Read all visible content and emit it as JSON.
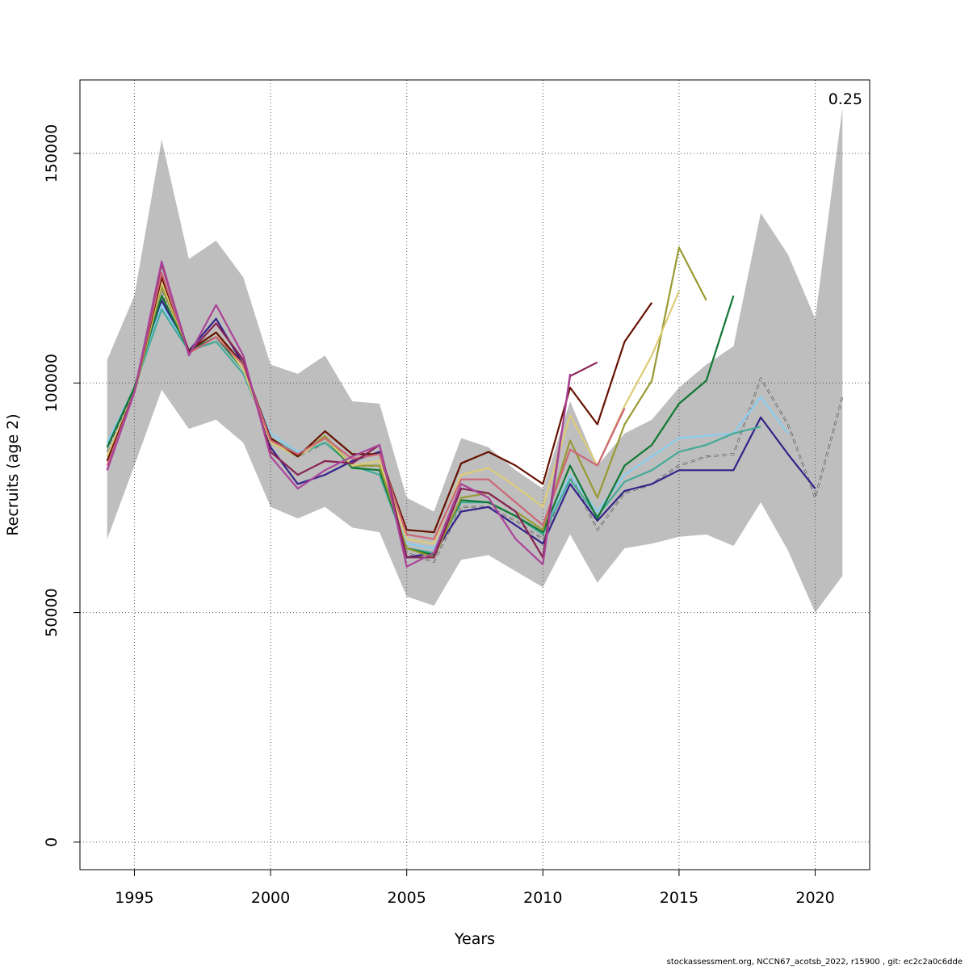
{
  "chart_data": {
    "type": "line",
    "xlabel": "Years",
    "ylabel": "Recruits (age 2)",
    "xlim": [
      1993,
      2022
    ],
    "ylim": [
      -6000,
      166000
    ],
    "x_ticks": [
      1995,
      2000,
      2005,
      2010,
      2015,
      2020
    ],
    "y_ticks": [
      0,
      50000,
      100000,
      150000
    ],
    "grid": true,
    "annotation": "0.25",
    "band": {
      "x": [
        1994,
        1995,
        1996,
        1997,
        1998,
        1999,
        2000,
        2001,
        2002,
        2003,
        2004,
        2005,
        2006,
        2007,
        2008,
        2009,
        2010,
        2011,
        2012,
        2013,
        2014,
        2015,
        2016,
        2017,
        2018,
        2019,
        2020,
        2021
      ],
      "upper": [
        105000,
        119000,
        153000,
        127000,
        131000,
        123000,
        104000,
        102000,
        106000,
        96000,
        95500,
        75000,
        72000,
        88000,
        86000,
        81000,
        77000,
        96000,
        82000,
        89000,
        92000,
        99000,
        104000,
        108000,
        137000,
        128000,
        114000,
        160000
      ],
      "lower": [
        66000,
        82000,
        98500,
        90000,
        92000,
        87000,
        73000,
        70500,
        73000,
        68500,
        67500,
        53500,
        51500,
        61500,
        62500,
        59000,
        55500,
        67000,
        56500,
        64000,
        65000,
        66500,
        67000,
        64500,
        74000,
        63500,
        50000,
        58000
      ]
    },
    "series": [
      {
        "color": "#000000",
        "dashed": true,
        "width": 2.0,
        "start": 1994,
        "values": [
          85000,
          98000,
          120000,
          107000,
          110000,
          103000,
          87000,
          84000,
          87000,
          82000,
          82000,
          63000,
          61000,
          73000,
          73000,
          70000,
          66000,
          80000,
          68000,
          76000,
          78000,
          82000,
          84000,
          84500,
          101000,
          91000,
          75000,
          97000
        ]
      },
      {
        "color": "#d9d9d9",
        "dashed": true,
        "width": 1.2,
        "start": 1994,
        "values": [
          85000,
          98000,
          120000,
          107000,
          110000,
          103000,
          87000,
          84000,
          87000,
          82000,
          82000,
          63000,
          61000,
          73000,
          73000,
          70000,
          66000,
          80000,
          68000,
          76000,
          78000,
          82000,
          84000,
          84500,
          101000,
          91000,
          75000,
          97000
        ]
      },
      {
        "color": "#332288",
        "start": 1994,
        "values": [
          86000,
          99000,
          118000,
          107000,
          114000,
          104000,
          86000,
          78000,
          80000,
          83000,
          85000,
          62000,
          63000,
          72000,
          73000,
          69000,
          65000,
          78000,
          70000,
          76500,
          78000,
          81000,
          81000,
          81000,
          92500,
          84500,
          77000
        ]
      },
      {
        "color": "#88ccee",
        "start": 1994,
        "values": [
          87000,
          99000,
          117000,
          107000,
          110000,
          103000,
          89000,
          85000,
          87000,
          82000,
          80000,
          65000,
          64000,
          74000,
          74000,
          71000,
          67000,
          80000,
          72000,
          80000,
          84000,
          88000,
          88500,
          89000,
          97000,
          89000
        ]
      },
      {
        "color": "#44aa99",
        "start": 1994,
        "values": [
          86000,
          99000,
          116000,
          107000,
          109000,
          102000,
          88000,
          84500,
          87000,
          82000,
          80000,
          64000,
          63000,
          74000,
          74000,
          71000,
          67000,
          79000,
          71000,
          78500,
          81000,
          85000,
          86500,
          89000,
          90500
        ]
      },
      {
        "color": "#117733",
        "start": 1994,
        "values": [
          86000,
          99000,
          119000,
          107000,
          110000,
          103000,
          88000,
          84000,
          88000,
          81500,
          81000,
          64000,
          62500,
          74500,
          74000,
          71000,
          67500,
          82000,
          70500,
          82000,
          86500,
          95500,
          100500,
          119000
        ]
      },
      {
        "color": "#999933",
        "start": 1994,
        "values": [
          84000,
          98000,
          121000,
          107000,
          111000,
          104000,
          87000,
          84000,
          88500,
          82000,
          82000,
          64000,
          62000,
          75000,
          76000,
          72000,
          68000,
          87500,
          75000,
          91000,
          100500,
          129500,
          118000
        ]
      },
      {
        "color": "#ddcc77",
        "start": 1994,
        "values": [
          84000,
          98000,
          122000,
          107000,
          111000,
          103000,
          87000,
          84000,
          88000,
          82000,
          83000,
          66000,
          65000,
          80000,
          81500,
          77500,
          73000,
          93000,
          82000,
          95000,
          106000,
          120000
        ]
      },
      {
        "color": "#661100",
        "start": 1994,
        "values": [
          83000,
          98000,
          123000,
          107000,
          111000,
          104000,
          88000,
          84000,
          89500,
          84500,
          84500,
          68000,
          67500,
          82500,
          85000,
          82000,
          78000,
          99000,
          91000,
          109000,
          117500
        ]
      },
      {
        "color": "#cc6677",
        "start": 1994,
        "values": [
          82000,
          98000,
          124000,
          106500,
          110000,
          104000,
          87500,
          84500,
          88000,
          83500,
          84500,
          67000,
          66000,
          79000,
          79000,
          74000,
          69000,
          85500,
          82000,
          94500
        ]
      },
      {
        "color": "#882255",
        "start": 1994,
        "values": [
          81000,
          98000,
          126000,
          106500,
          113000,
          105000,
          85000,
          80000,
          83000,
          82500,
          86500,
          62000,
          62000,
          77000,
          76000,
          72000,
          62000,
          101500,
          104500
        ]
      },
      {
        "color": "#aa4499",
        "start": 1994,
        "values": [
          81000,
          98000,
          126500,
          106000,
          117000,
          106000,
          84000,
          77000,
          81000,
          84000,
          86500,
          60000,
          63000,
          78000,
          75000,
          66000,
          60500,
          102000
        ]
      }
    ]
  },
  "footer": {
    "text": "stockassessment.org, NCCN67_acotsb_2022, r15900 , git: ec2c2a0c6dde"
  }
}
